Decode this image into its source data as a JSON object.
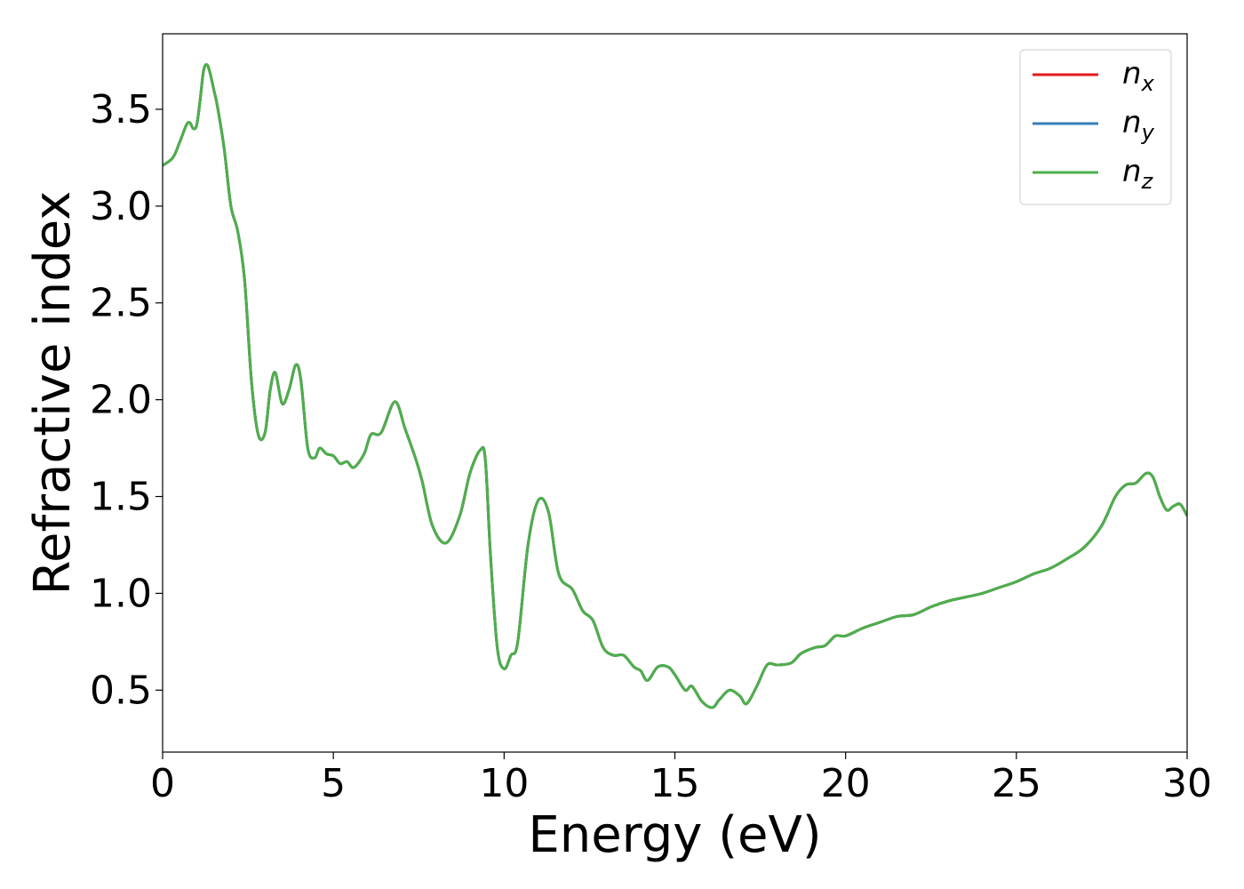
{
  "chart_data": {
    "type": "line",
    "title": "",
    "xlabel": "Energy (eV)",
    "ylabel": "Refractive index",
    "xlim": [
      0,
      30
    ],
    "ylim": [
      0.18,
      3.89
    ],
    "xticks": [
      0,
      5,
      10,
      15,
      20,
      25,
      30
    ],
    "yticks": [
      0.5,
      1.0,
      1.5,
      2.0,
      2.5,
      3.0,
      3.5
    ],
    "xtick_labels": [
      "0",
      "5",
      "10",
      "15",
      "20",
      "25",
      "30"
    ],
    "ytick_labels": [
      "0.5",
      "1.0",
      "1.5",
      "2.0",
      "2.5",
      "3.0",
      "3.5"
    ],
    "grid": false,
    "legend_position": "top-right",
    "series": [
      {
        "name": "n",
        "subscript": "x",
        "color": "#e41a1c",
        "values": "shared"
      },
      {
        "name": "n",
        "subscript": "y",
        "color": "#377eb8",
        "values": "shared"
      },
      {
        "name": "n",
        "subscript": "z",
        "color": "#4daf4a",
        "values": "shared"
      }
    ],
    "x": [
      0,
      0.3,
      0.5,
      0.7,
      0.8,
      0.9,
      1.0,
      1.1,
      1.2,
      1.3,
      1.4,
      1.5,
      1.6,
      1.8,
      2.0,
      2.2,
      2.4,
      2.6,
      2.8,
      3.0,
      3.15,
      3.3,
      3.5,
      3.7,
      3.9,
      4.05,
      4.25,
      4.45,
      4.6,
      4.8,
      5.0,
      5.2,
      5.4,
      5.6,
      5.9,
      6.1,
      6.4,
      6.8,
      7.1,
      7.4,
      7.6,
      7.9,
      8.3,
      8.7,
      9.0,
      9.3,
      9.45,
      9.6,
      9.8,
      10.0,
      10.2,
      10.4,
      10.7,
      11.0,
      11.3,
      11.6,
      12.0,
      12.3,
      12.6,
      12.9,
      13.2,
      13.5,
      13.8,
      14.0,
      14.2,
      14.5,
      14.8,
      15.0,
      15.3,
      15.5,
      15.8,
      16.1,
      16.3,
      16.6,
      16.9,
      17.1,
      17.4,
      17.7,
      18.0,
      18.4,
      18.7,
      19.1,
      19.4,
      19.7,
      20.0,
      20.5,
      21.0,
      21.5,
      22.0,
      22.5,
      23.0,
      23.5,
      24.0,
      24.5,
      25.0,
      25.5,
      26.0,
      26.5,
      27.0,
      27.5,
      27.9,
      28.2,
      28.5,
      28.8,
      29.0,
      29.2,
      29.4,
      29.6,
      29.8,
      30.0
    ],
    "y": [
      3.21,
      3.25,
      3.33,
      3.42,
      3.43,
      3.4,
      3.42,
      3.55,
      3.7,
      3.73,
      3.68,
      3.6,
      3.52,
      3.3,
      3.0,
      2.87,
      2.62,
      2.1,
      1.82,
      1.83,
      2.05,
      2.14,
      1.98,
      2.05,
      2.18,
      2.1,
      1.75,
      1.7,
      1.75,
      1.72,
      1.71,
      1.67,
      1.68,
      1.65,
      1.72,
      1.82,
      1.83,
      1.99,
      1.85,
      1.7,
      1.58,
      1.35,
      1.26,
      1.4,
      1.62,
      1.74,
      1.69,
      1.2,
      0.72,
      0.61,
      0.68,
      0.75,
      1.25,
      1.48,
      1.42,
      1.1,
      1.02,
      0.91,
      0.86,
      0.72,
      0.68,
      0.68,
      0.62,
      0.6,
      0.55,
      0.62,
      0.62,
      0.58,
      0.5,
      0.52,
      0.44,
      0.41,
      0.45,
      0.5,
      0.47,
      0.43,
      0.52,
      0.63,
      0.63,
      0.64,
      0.69,
      0.72,
      0.73,
      0.78,
      0.78,
      0.82,
      0.85,
      0.88,
      0.89,
      0.93,
      0.96,
      0.98,
      1.0,
      1.03,
      1.06,
      1.1,
      1.13,
      1.18,
      1.24,
      1.35,
      1.5,
      1.56,
      1.57,
      1.62,
      1.6,
      1.5,
      1.43,
      1.45,
      1.46,
      1.4
    ]
  }
}
